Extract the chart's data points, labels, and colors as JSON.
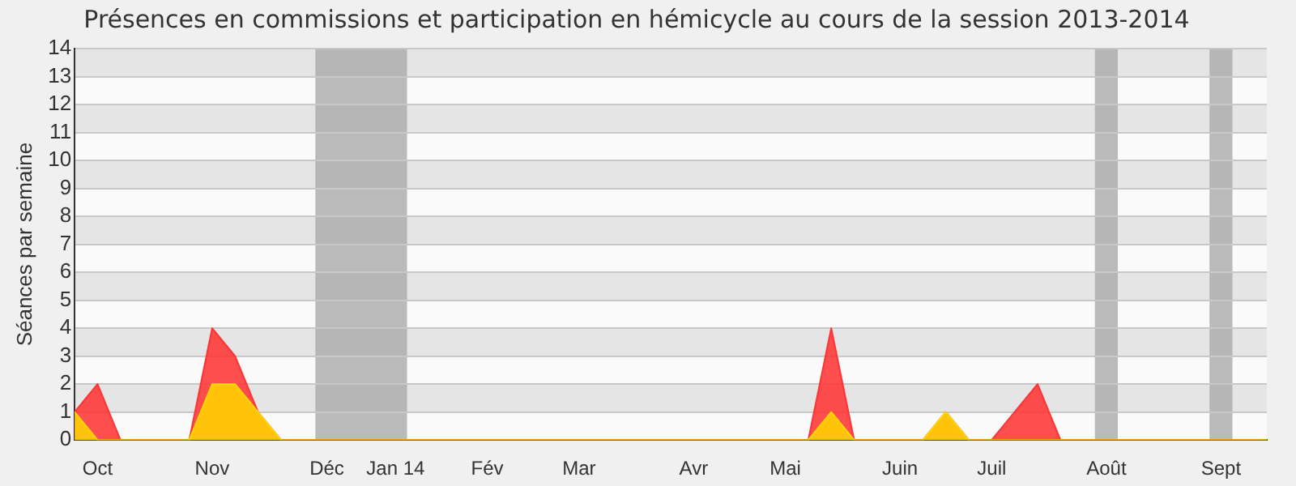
{
  "chart_data": {
    "type": "area",
    "title": "Présences en commissions et participation en hémicycle au cours de la session 2013-2014",
    "ylabel": "Séances par semaine",
    "categories": [
      null,
      "Oct",
      null,
      null,
      null,
      null,
      "Nov",
      null,
      null,
      null,
      null,
      "Déc",
      null,
      null,
      "Jan 14",
      null,
      null,
      null,
      "Fév",
      null,
      null,
      null,
      "Mar",
      null,
      null,
      null,
      null,
      "Avr",
      null,
      null,
      null,
      "Mai",
      null,
      null,
      null,
      null,
      "Juin",
      null,
      null,
      null,
      "Juil",
      null,
      null,
      null,
      null,
      "Août",
      null,
      null,
      null,
      null,
      "Sept",
      null,
      null
    ],
    "series": [
      {
        "color": "#ff3333",
        "values": [
          1,
          2,
          0,
          0,
          0,
          0,
          4,
          3,
          1,
          0,
          0,
          0,
          0,
          0,
          0,
          0,
          0,
          0,
          0,
          0,
          0,
          0,
          0,
          0,
          0,
          0,
          0,
          0,
          0,
          0,
          0,
          0,
          0,
          4,
          0,
          0,
          0,
          0,
          1,
          0,
          0,
          1,
          2,
          0,
          0,
          0,
          0,
          0,
          0,
          0,
          0,
          0,
          0
        ]
      },
      {
        "color": "#ffd700",
        "values": [
          1,
          0,
          0,
          0,
          0,
          0,
          2,
          2,
          1,
          0,
          0,
          0,
          0,
          0,
          0,
          0,
          0,
          0,
          0,
          0,
          0,
          0,
          0,
          0,
          0,
          0,
          0,
          0,
          0,
          0,
          0,
          0,
          0,
          1,
          0,
          0,
          0,
          0,
          1,
          0,
          0,
          0,
          0,
          0,
          0,
          0,
          0,
          0,
          0,
          0,
          0,
          0,
          0
        ]
      }
    ],
    "ylim": [
      0,
      14
    ],
    "yticks": [
      0,
      1,
      2,
      3,
      4,
      5,
      6,
      7,
      8,
      9,
      10,
      11,
      12,
      13,
      14
    ],
    "bands": [
      {
        "axis": "x",
        "from": "Déc",
        "to": "Jan 14",
        "color": "#aaaaaa"
      },
      {
        "axis": "x",
        "from": "Août",
        "to": "Août",
        "color": "#aaaaaa"
      },
      {
        "axis": "x",
        "from": "Sept",
        "to": "Sept",
        "color": "#aaaaaa"
      }
    ],
    "grid": "y",
    "legend": false,
    "marker": "none",
    "line_style": "solid"
  }
}
